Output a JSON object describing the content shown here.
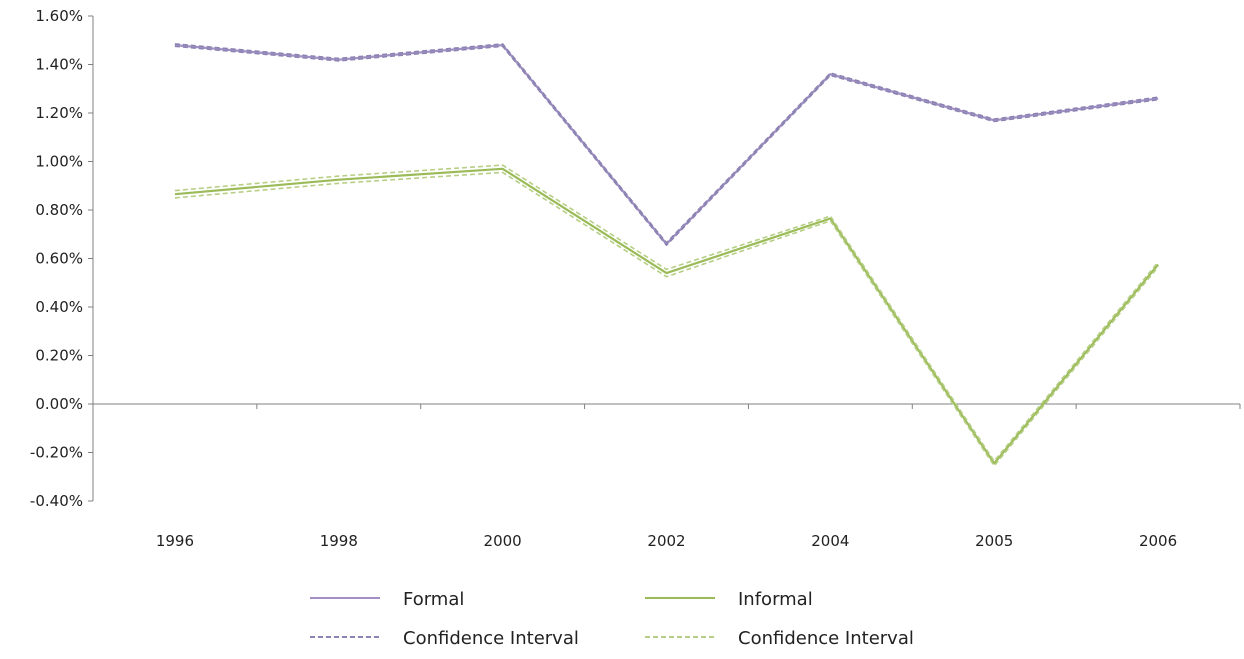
{
  "chart_data": {
    "type": "line",
    "title": "",
    "xlabel": "",
    "ylabel": "",
    "categories": [
      "1996",
      "1998",
      "2000",
      "2002",
      "2004",
      "2005",
      "2006"
    ],
    "y_ticks": [
      "1.60%",
      "1.40%",
      "1.20%",
      "1.00%",
      "0.80%",
      "0.60%",
      "0.40%",
      "0.20%",
      "0.00%",
      "-0.20%",
      "-0.40%"
    ],
    "ylim": [
      -0.4,
      1.6
    ],
    "y_unit": "%",
    "grid": false,
    "legend_position": "bottom",
    "series": [
      {
        "name": "Formal",
        "color": "#a38fc4",
        "style": "solid",
        "values": [
          1.48,
          1.42,
          1.48,
          0.66,
          1.36,
          1.17,
          1.26
        ]
      },
      {
        "name": "Confidence Interval",
        "color": "#8b84b2",
        "style": "dashed",
        "values": [
          1.485,
          1.425,
          1.485,
          0.665,
          1.365,
          1.175,
          1.265
        ]
      },
      {
        "name": "Confidence Interval",
        "color": "#8b84b2",
        "style": "dashed",
        "values": [
          1.475,
          1.415,
          1.475,
          0.655,
          1.355,
          1.165,
          1.255
        ]
      },
      {
        "name": "Informal",
        "color": "#9bbb59",
        "style": "solid",
        "values": [
          0.865,
          0.925,
          0.97,
          0.54,
          0.765,
          -0.245,
          0.575
        ]
      },
      {
        "name": "Confidence Interval",
        "color": "#b6cf85",
        "style": "dashed",
        "values": [
          0.88,
          0.94,
          0.985,
          0.555,
          0.775,
          -0.235,
          0.585
        ]
      },
      {
        "name": "Confidence Interval",
        "color": "#b6cf85",
        "style": "dashed",
        "values": [
          0.85,
          0.91,
          0.955,
          0.525,
          0.755,
          -0.255,
          0.565
        ]
      }
    ],
    "legend": [
      {
        "label": "Formal",
        "color": "#a38fc4",
        "style": "solid"
      },
      {
        "label": "Informal",
        "color": "#9bbb59",
        "style": "solid"
      },
      {
        "label": "Confidence Interval",
        "color": "#8b84b2",
        "style": "dashed"
      },
      {
        "label": "Confidence Interval",
        "color": "#b6cf85",
        "style": "dashed"
      }
    ]
  }
}
